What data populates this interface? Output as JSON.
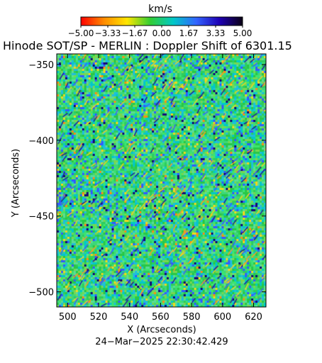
{
  "chart_data": {
    "type": "heatmap",
    "title": "Hinode SOT/SP - MERLIN : Doppler Shift of 6301.15",
    "colorbar": {
      "label": "km/s",
      "range": [
        -5.0,
        5.0
      ],
      "tick_labels": [
        "−5.00",
        "−3.33",
        "−1.67",
        "0.00",
        "1.67",
        "3.33",
        "5.00"
      ],
      "colormap_stops": [
        "#ff0000",
        "#ff8c00",
        "#ffe600",
        "#32cd32",
        "#00c8c8",
        "#3264ff",
        "#1e00b4",
        "#0a0014"
      ]
    },
    "xlabel": "X (Arcseconds)",
    "ylabel": "Y (Arcseconds)",
    "xlim": [
      493,
      628
    ],
    "ylim": [
      -510,
      -343
    ],
    "x_ticks": [
      {
        "value": 500,
        "label": "500"
      },
      {
        "value": 520,
        "label": "520"
      },
      {
        "value": 540,
        "label": "540"
      },
      {
        "value": 560,
        "label": "560"
      },
      {
        "value": 580,
        "label": "580"
      },
      {
        "value": 600,
        "label": "600"
      },
      {
        "value": 620,
        "label": "620"
      }
    ],
    "y_ticks": [
      {
        "value": -350,
        "label": "−350"
      },
      {
        "value": -400,
        "label": "−400"
      },
      {
        "value": -450,
        "label": "−450"
      },
      {
        "value": -500,
        "label": "−500"
      }
    ],
    "field_description": "Doppler velocity map dominated by values near -1 to +2 km/s (green/cyan) with scattered small-scale blue/dark (positive) and yellow/orange (negative) granulation features.",
    "timestamp": "24−Mar−2025 22:30:42.429"
  }
}
